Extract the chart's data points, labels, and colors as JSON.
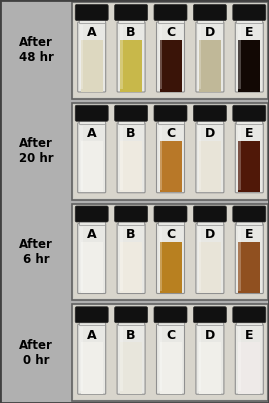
{
  "figure_bg": "#b0b0b0",
  "row_bg": "#c8c8c8",
  "photo_bg": "#d0cfc8",
  "row_labels": [
    "After\n48 hr",
    "After\n20 hr",
    "After\n6 hr",
    "After\n0 hr"
  ],
  "vial_labels": [
    "A",
    "B",
    "C",
    "D",
    "E"
  ],
  "vial_colors": [
    [
      "#ddd8c0",
      "#c8b84a",
      "#3a1408",
      "#c0b898",
      "#120804"
    ],
    [
      "#f0efea",
      "#eeeae0",
      "#b87828",
      "#e8e4d8",
      "#501808"
    ],
    [
      "#f0efea",
      "#eeeae0",
      "#b88020",
      "#e8e4d8",
      "#905020"
    ],
    [
      "#f0efea",
      "#e8e6dc",
      "#f0efea",
      "#f0efea",
      "#eeeae8"
    ]
  ],
  "liquid_alpha": [
    [
      0.9,
      0.9,
      1.0,
      0.85,
      1.0
    ],
    [
      0.5,
      0.6,
      1.0,
      0.5,
      1.0
    ],
    [
      0.4,
      0.4,
      1.0,
      0.4,
      1.0
    ],
    [
      0.3,
      0.35,
      0.4,
      0.3,
      0.3
    ]
  ],
  "cap_color": "#111111",
  "glass_color": "#e8e8e4",
  "glass_edge": "#909090",
  "label_color": "#000000",
  "border_color": "#404040",
  "label_fontsize": 8.5,
  "vial_fontsize": 9,
  "row_border_color": "#606060"
}
